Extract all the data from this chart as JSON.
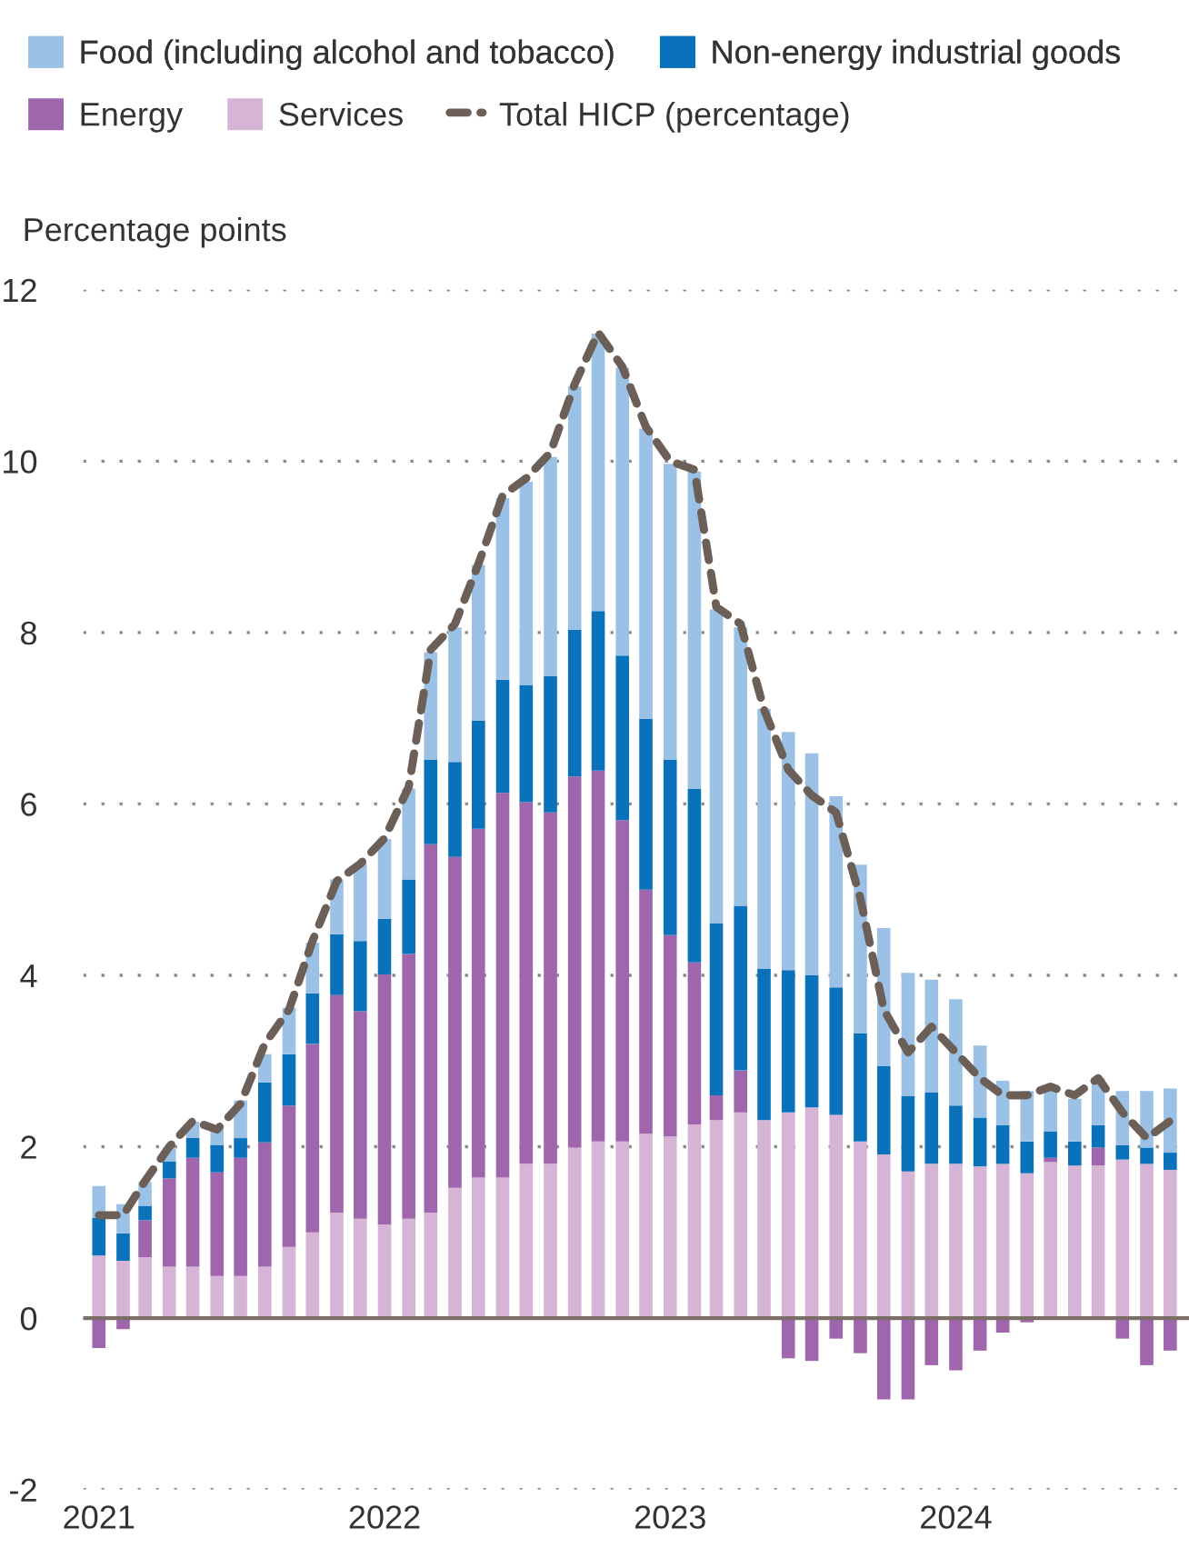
{
  "chart_data": {
    "type": "bar",
    "stacked": true,
    "ylabel": "Percentage points",
    "x": [
      "2021-01",
      "2021-02",
      "2021-03",
      "2021-04",
      "2021-05",
      "2021-06",
      "2021-07",
      "2021-08",
      "2021-09",
      "2021-10",
      "2021-11",
      "2021-12",
      "2022-01",
      "2022-02",
      "2022-03",
      "2022-04",
      "2022-05",
      "2022-06",
      "2022-07",
      "2022-08",
      "2022-09",
      "2022-10",
      "2022-11",
      "2022-12",
      "2023-01",
      "2023-02",
      "2023-03",
      "2023-04",
      "2023-05",
      "2023-06",
      "2023-07",
      "2023-08",
      "2023-09",
      "2023-10",
      "2023-11",
      "2023-12",
      "2024-01",
      "2024-02",
      "2024-03",
      "2024-04",
      "2024-05",
      "2024-06",
      "2024-07",
      "2024-08",
      "2024-09",
      "2024-10"
    ],
    "series": [
      {
        "name": "Services",
        "color": "#d5b4d6",
        "values": [
          0.73,
          0.67,
          0.71,
          0.6,
          0.6,
          0.49,
          0.49,
          0.6,
          0.83,
          1.0,
          1.23,
          1.16,
          1.09,
          1.16,
          1.23,
          1.52,
          1.64,
          1.64,
          1.8,
          1.8,
          1.99,
          2.06,
          2.06,
          2.15,
          2.12,
          2.26,
          2.31,
          2.4,
          2.31,
          2.4,
          2.46,
          2.37,
          2.06,
          1.91,
          1.71,
          1.8,
          1.8,
          1.77,
          1.8,
          1.69,
          1.82,
          1.78,
          1.78,
          1.85,
          1.8,
          1.73
        ]
      },
      {
        "name": "Energy",
        "color": "#a066ad",
        "values": [
          -0.35,
          -0.13,
          0.43,
          1.03,
          1.27,
          1.21,
          1.38,
          1.45,
          1.65,
          2.2,
          2.54,
          2.42,
          2.92,
          3.09,
          4.3,
          3.86,
          4.07,
          4.49,
          4.22,
          4.1,
          4.33,
          4.33,
          3.75,
          2.85,
          2.35,
          1.89,
          0.29,
          0.49,
          -0.02,
          -0.47,
          -0.5,
          -0.24,
          -0.41,
          -0.95,
          -0.95,
          -0.55,
          -0.61,
          -0.38,
          -0.17,
          -0.05,
          0.05,
          0.0,
          0.21,
          -0.24,
          -0.55,
          -0.38
        ]
      },
      {
        "name": "Non-energy industrial goods",
        "color": "#0a72bb",
        "values": [
          0.44,
          0.32,
          0.17,
          0.2,
          0.23,
          0.32,
          0.23,
          0.7,
          0.6,
          0.59,
          0.71,
          0.82,
          0.65,
          0.87,
          0.99,
          1.11,
          1.26,
          1.32,
          1.37,
          1.59,
          1.71,
          1.86,
          1.92,
          1.99,
          2.05,
          2.03,
          2.01,
          1.92,
          1.77,
          1.66,
          1.54,
          1.49,
          1.26,
          1.03,
          0.88,
          0.83,
          0.68,
          0.57,
          0.45,
          0.37,
          0.31,
          0.28,
          0.26,
          0.17,
          0.19,
          0.2
        ]
      },
      {
        "name": "Food (including alcohol and tobacco)",
        "color": "#9bc2e6",
        "values": [
          0.37,
          0.34,
          0.28,
          0.16,
          0.19,
          0.23,
          0.44,
          0.33,
          0.54,
          0.59,
          0.64,
          0.9,
          0.93,
          1.06,
          1.25,
          1.57,
          1.82,
          2.12,
          2.37,
          2.56,
          2.84,
          3.24,
          3.36,
          3.39,
          3.45,
          3.7,
          3.66,
          3.25,
          3.03,
          2.78,
          2.59,
          2.23,
          1.97,
          1.61,
          1.44,
          1.32,
          1.24,
          0.84,
          0.52,
          0.59,
          0.52,
          0.5,
          0.55,
          0.63,
          0.66,
          0.75
        ]
      },
      {
        "name": "Total HICP (percentage)",
        "type": "line",
        "line_style": "dashed",
        "marker": "none",
        "color": "#6b5f58",
        "values": [
          1.2,
          1.2,
          1.6,
          2.0,
          2.3,
          2.2,
          2.5,
          3.2,
          3.6,
          4.4,
          5.1,
          5.3,
          5.6,
          6.2,
          7.8,
          8.1,
          8.8,
          9.6,
          9.8,
          10.1,
          10.9,
          11.5,
          11.1,
          10.4,
          10.0,
          9.9,
          8.3,
          8.1,
          7.1,
          6.4,
          6.1,
          5.9,
          4.9,
          3.6,
          3.1,
          3.4,
          3.1,
          2.8,
          2.6,
          2.6,
          2.7,
          2.6,
          2.8,
          2.4,
          2.1,
          2.3
        ]
      }
    ],
    "xlim": [
      "2020-12-12",
      "2024-10-25"
    ],
    "xticks": [
      "2021",
      "2022",
      "2023",
      "2024"
    ],
    "ylim": [
      -2,
      12
    ],
    "yticks": [
      -2,
      0,
      2,
      4,
      6,
      8,
      10,
      12
    ],
    "grid": "y",
    "legend": "top",
    "ref_lines": [
      {
        "axis": "y",
        "value": 0,
        "color": "#7a6e66",
        "line_style": "solid"
      }
    ]
  }
}
